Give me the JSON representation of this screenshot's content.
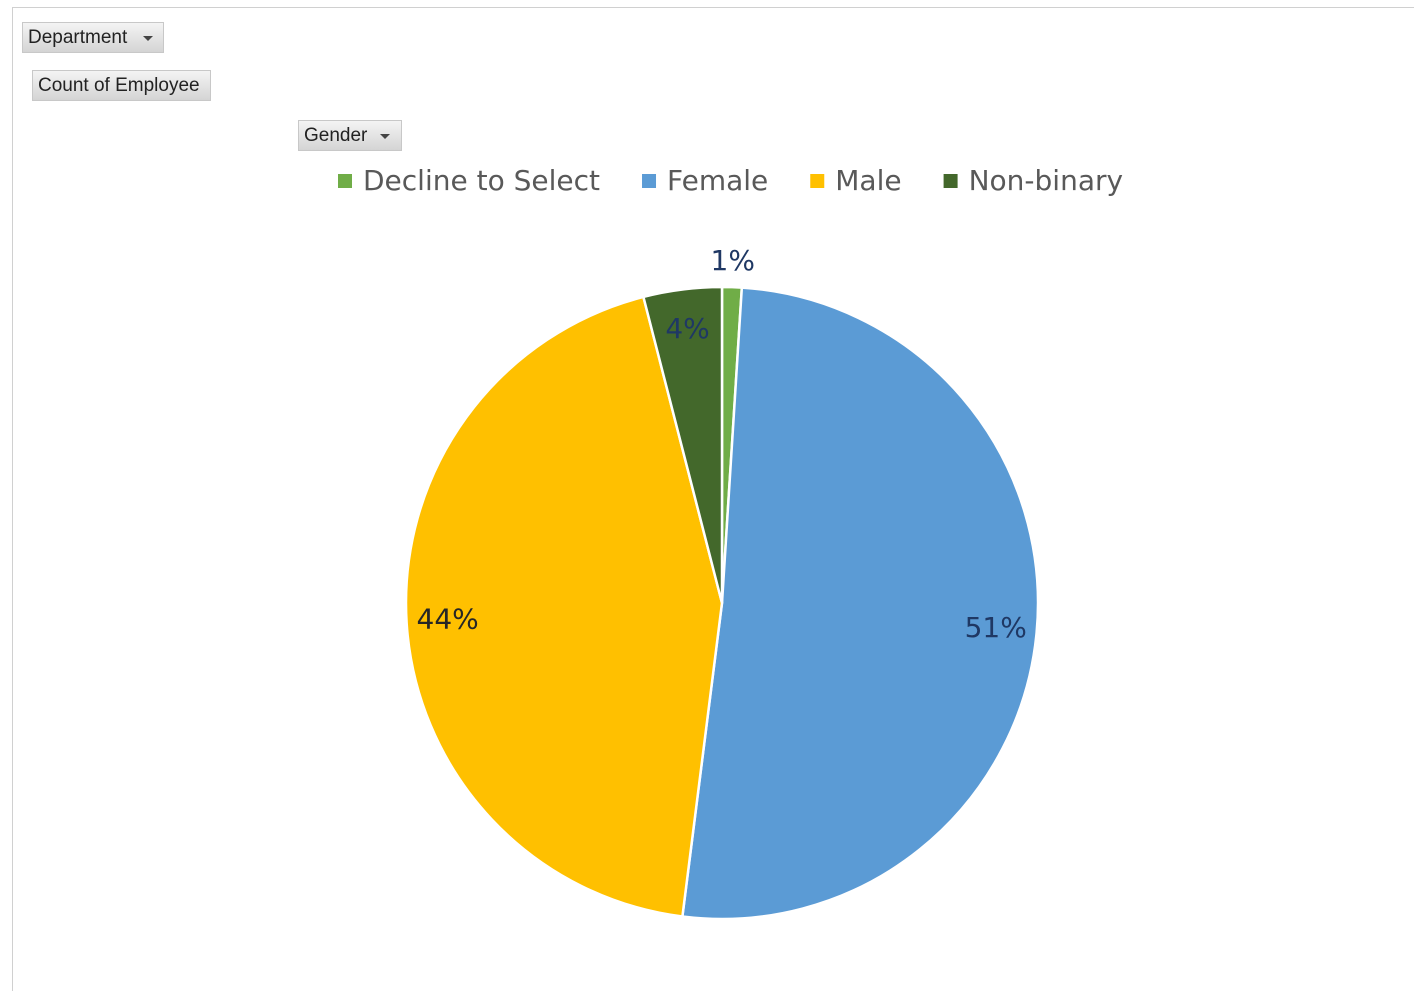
{
  "pivot": {
    "filter_field": "Department",
    "values_field": "Count of Employee",
    "legend_field": "Gender"
  },
  "chart_data": {
    "type": "pie",
    "categories": [
      "Decline to Select",
      "Female",
      "Male",
      "Non-binary"
    ],
    "values": [
      1,
      51,
      44,
      4
    ],
    "value_labels": [
      "1%",
      "51%",
      "44%",
      "4%"
    ],
    "colors": [
      "#70ad47",
      "#5b9bd5",
      "#ffc000",
      "#43682b"
    ],
    "legend": "top"
  }
}
